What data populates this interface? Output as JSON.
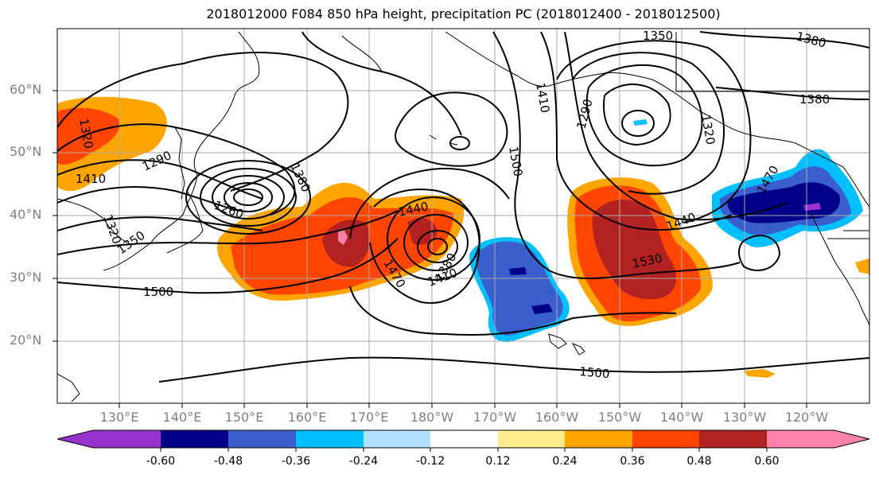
{
  "title": "2018012000 F084 850 hPa height, precipitation PC (2018012400 - 2018012500)",
  "lat_labels": [
    "60°N",
    "50°N",
    "40°N",
    "30°N",
    "20°N"
  ],
  "lon_labels": [
    "130°E",
    "140°E",
    "150°E",
    "160°E",
    "170°E",
    "180°W",
    "170°W",
    "160°W",
    "150°W",
    "140°W",
    "130°W",
    "120°W"
  ],
  "contour_labels": [
    "1350",
    "1380",
    "1380",
    "1290",
    "1320",
    "1500",
    "1410",
    "1290",
    "1320",
    "1260",
    "1380",
    "1440",
    "1470",
    "1380",
    "1410",
    "1440",
    "1530",
    "1470",
    "1500",
    "1500",
    "1320",
    "1350",
    "1410"
  ],
  "colorbar": {
    "labels": [
      "-0.60",
      "-0.48",
      "-0.36",
      "-0.24",
      "-0.12",
      "0.12",
      "0.24",
      "0.36",
      "0.48",
      "0.60"
    ],
    "colors": [
      "#9932cc",
      "#00008b",
      "#3a5fcd",
      "#00bfff",
      "#b0e2ff",
      "#ffffff",
      "#ffec8b",
      "#ffa500",
      "#ff4500",
      "#b22222",
      "#ff82ab"
    ]
  }
}
